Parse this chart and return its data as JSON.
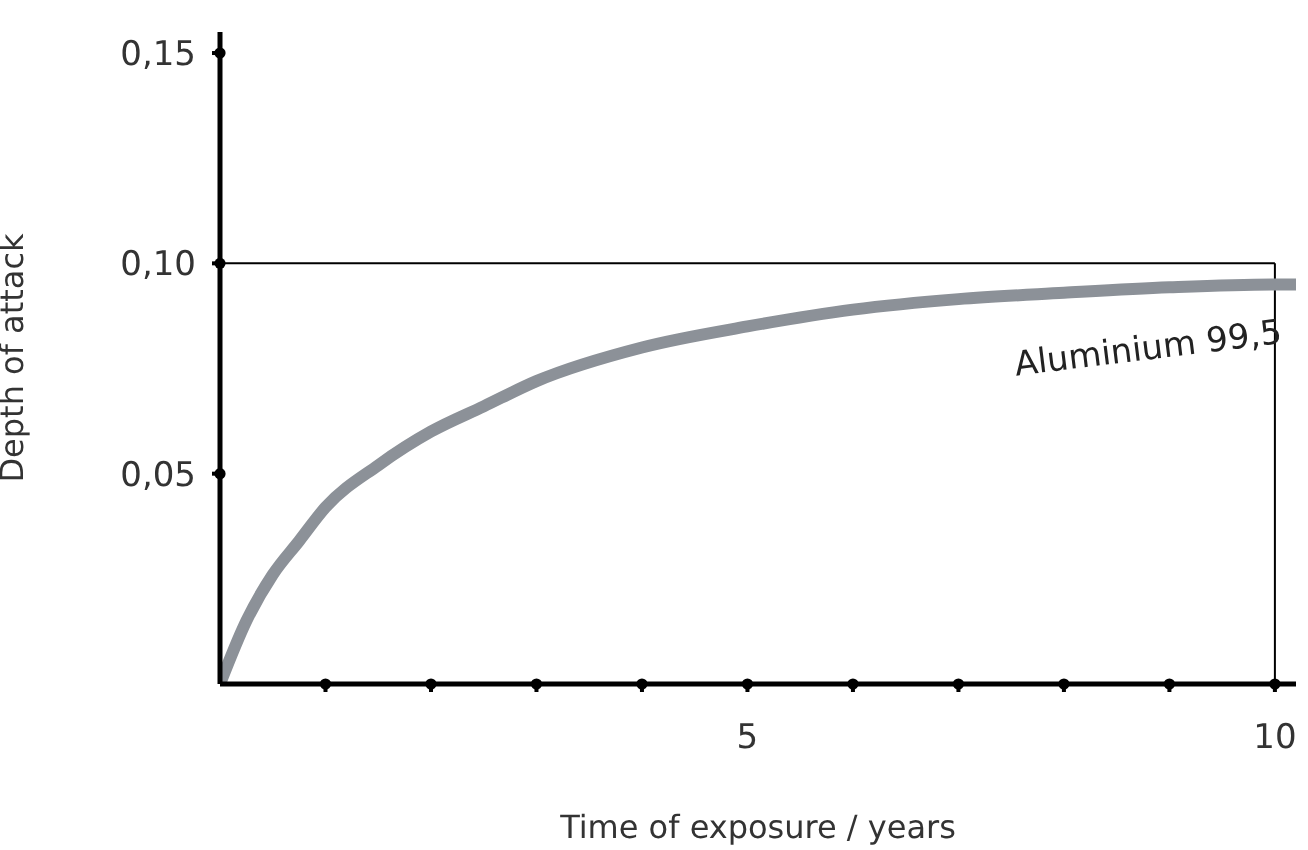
{
  "chart_data": {
    "type": "line",
    "xlabel": "Time of exposure / years",
    "ylabel": "Depth of attack",
    "x": [
      0,
      0.25,
      0.5,
      0.75,
      1,
      1.5,
      2,
      2.5,
      3,
      4,
      5,
      6,
      7,
      8,
      9,
      10,
      10.2
    ],
    "series": [
      {
        "name": "Aluminium 99,5",
        "color": "#8c9198",
        "values": [
          0,
          0.015,
          0.026,
          0.034,
          0.042,
          0.052,
          0.06,
          0.066,
          0.072,
          0.08,
          0.085,
          0.089,
          0.0915,
          0.093,
          0.0943,
          0.095,
          0.095
        ]
      }
    ],
    "xlim": [
      0,
      10.2
    ],
    "ylim": [
      0,
      0.155
    ],
    "xticks": [
      {
        "value": 1,
        "label": null
      },
      {
        "value": 2,
        "label": null
      },
      {
        "value": 3,
        "label": null
      },
      {
        "value": 4,
        "label": null
      },
      5,
      {
        "value": 6,
        "label": null
      },
      {
        "value": 7,
        "label": null
      },
      {
        "value": 8,
        "label": null
      },
      {
        "value": 9,
        "label": null
      },
      10
    ],
    "yticks": [
      {
        "value": 0.05,
        "label": "0,05"
      },
      {
        "value": 0.1,
        "label": "0,10"
      },
      {
        "value": 0.15,
        "label": "0,15"
      }
    ],
    "ref_lines": [
      {
        "axis": "y",
        "value": 0.1,
        "color": "#000000"
      },
      {
        "axis": "x",
        "value": 10,
        "color": "#000000"
      }
    ],
    "grid": false,
    "legend": false,
    "marker": "none",
    "line_style": "solid"
  }
}
